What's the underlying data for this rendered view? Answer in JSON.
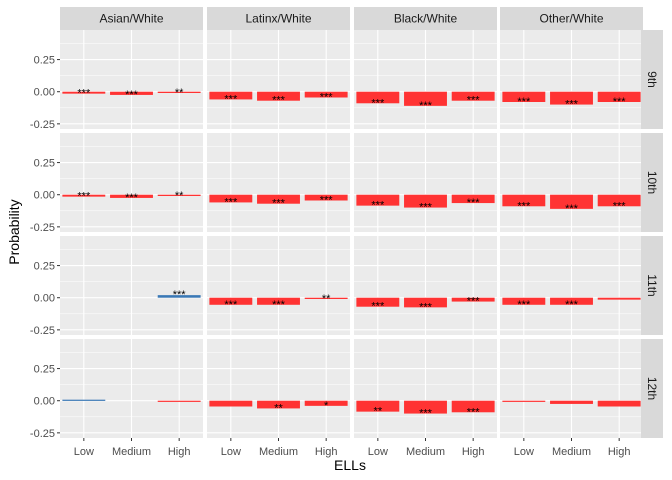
{
  "chart_data": {
    "type": "bar",
    "facet_layout": "grid",
    "xlabel": "ELLs",
    "ylabel": "Probability",
    "ylim": [
      -0.29,
      0.48
    ],
    "yticks": [
      -0.25,
      0.0,
      0.25
    ],
    "ytick_labels": [
      "-0.25",
      "0.00",
      "0.25"
    ],
    "categories": [
      "Low",
      "Medium",
      "High"
    ],
    "columns": [
      "Asian/White",
      "Latinx/White",
      "Black/White",
      "Other/White"
    ],
    "rows": [
      "9th",
      "10th",
      "11th",
      "12th"
    ],
    "grid": true,
    "colors": {
      "negative": "#ff3333",
      "positive": "#3a78b5",
      "panel_bg": "#ebebeb",
      "strip_bg": "#d9d9d9",
      "grid": "#ffffff"
    },
    "panels": [
      {
        "row": "9th",
        "column": "Asian/White",
        "values": [
          -0.015,
          -0.025,
          -0.01
        ],
        "labels": [
          "***",
          "***",
          "**"
        ]
      },
      {
        "row": "9th",
        "column": "Latinx/White",
        "values": [
          -0.06,
          -0.07,
          -0.045
        ],
        "labels": [
          "***",
          "***",
          "***"
        ]
      },
      {
        "row": "9th",
        "column": "Black/White",
        "values": [
          -0.09,
          -0.11,
          -0.07
        ],
        "labels": [
          "***",
          "***",
          "***"
        ]
      },
      {
        "row": "9th",
        "column": "Other/White",
        "values": [
          -0.08,
          -0.1,
          -0.08
        ],
        "labels": [
          "***",
          "***",
          "***"
        ]
      },
      {
        "row": "10th",
        "column": "Asian/White",
        "values": [
          -0.015,
          -0.025,
          -0.01
        ],
        "labels": [
          "***",
          "***",
          "**"
        ]
      },
      {
        "row": "10th",
        "column": "Latinx/White",
        "values": [
          -0.06,
          -0.07,
          -0.045
        ],
        "labels": [
          "***",
          "***",
          "***"
        ]
      },
      {
        "row": "10th",
        "column": "Black/White",
        "values": [
          -0.085,
          -0.1,
          -0.065
        ],
        "labels": [
          "***",
          "***",
          "***"
        ]
      },
      {
        "row": "10th",
        "column": "Other/White",
        "values": [
          -0.09,
          -0.11,
          -0.09
        ],
        "labels": [
          "***",
          "***",
          "***"
        ]
      },
      {
        "row": "11th",
        "column": "Asian/White",
        "values": [
          0,
          0,
          0.02
        ],
        "labels": [
          "",
          "",
          "***"
        ]
      },
      {
        "row": "11th",
        "column": "Latinx/White",
        "values": [
          -0.055,
          -0.055,
          -0.01
        ],
        "labels": [
          "***",
          "***",
          "**"
        ]
      },
      {
        "row": "11th",
        "column": "Black/White",
        "values": [
          -0.07,
          -0.075,
          -0.03
        ],
        "labels": [
          "***",
          "***",
          "***"
        ]
      },
      {
        "row": "11th",
        "column": "Other/White",
        "values": [
          -0.055,
          -0.055,
          -0.015
        ],
        "labels": [
          "***",
          "***",
          ""
        ]
      },
      {
        "row": "12th",
        "column": "Asian/White",
        "values": [
          0.008,
          0,
          -0.004
        ],
        "labels": [
          "",
          "",
          ""
        ]
      },
      {
        "row": "12th",
        "column": "Latinx/White",
        "values": [
          -0.045,
          -0.06,
          -0.04
        ],
        "labels": [
          "",
          "**",
          "*"
        ]
      },
      {
        "row": "12th",
        "column": "Black/White",
        "values": [
          -0.085,
          -0.1,
          -0.09
        ],
        "labels": [
          "**",
          "***",
          "***"
        ]
      },
      {
        "row": "12th",
        "column": "Other/White",
        "values": [
          -0.008,
          -0.025,
          -0.045
        ],
        "labels": [
          "",
          "",
          ""
        ]
      }
    ]
  }
}
